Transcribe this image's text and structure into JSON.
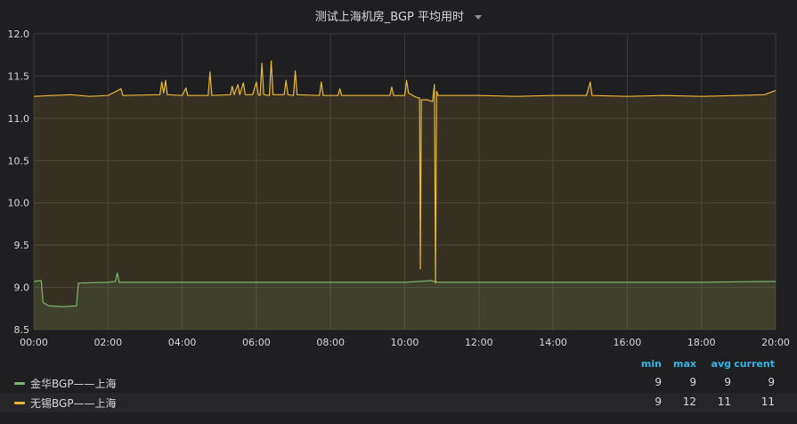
{
  "panel": {
    "title": "测试上海机房_BGP 平均用时"
  },
  "colors": {
    "jinhua": "#7eb26d",
    "wuxi": "#eab839",
    "grid": "#3a3a3c",
    "axis_text": "#d8d9da"
  },
  "chart_data": {
    "type": "line",
    "title": "测试上海机房_BGP 平均用时",
    "xlabel": "",
    "ylabel": "",
    "x_ticks": [
      "00:00",
      "02:00",
      "04:00",
      "06:00",
      "08:00",
      "10:00",
      "12:00",
      "14:00",
      "16:00",
      "18:00",
      "20:00"
    ],
    "xlim_hours": [
      0,
      20
    ],
    "ylim": [
      8.5,
      12.0
    ],
    "y_ticks": [
      "8.5",
      "9.0",
      "9.5",
      "10.0",
      "10.5",
      "11.0",
      "11.5",
      "12.0"
    ],
    "grid": true,
    "legend": "bottom",
    "series": [
      {
        "name": "金华BGP——上海",
        "color": "#7eb26d",
        "fill": true,
        "points": [
          [
            0.0,
            9.07
          ],
          [
            0.2,
            9.08
          ],
          [
            0.25,
            8.82
          ],
          [
            0.4,
            8.78
          ],
          [
            0.8,
            8.77
          ],
          [
            1.15,
            8.78
          ],
          [
            1.2,
            9.05
          ],
          [
            2.0,
            9.06
          ],
          [
            2.2,
            9.07
          ],
          [
            2.25,
            9.17
          ],
          [
            2.3,
            9.06
          ],
          [
            4.0,
            9.06
          ],
          [
            6.0,
            9.06
          ],
          [
            8.0,
            9.06
          ],
          [
            10.0,
            9.06
          ],
          [
            10.4,
            9.07
          ],
          [
            10.7,
            9.08
          ],
          [
            10.9,
            9.06
          ],
          [
            12.0,
            9.06
          ],
          [
            14.0,
            9.06
          ],
          [
            16.0,
            9.06
          ],
          [
            18.0,
            9.06
          ],
          [
            20.0,
            9.07
          ]
        ]
      },
      {
        "name": "无锡BGP——上海",
        "color": "#eab839",
        "fill": true,
        "points": [
          [
            0.0,
            11.26
          ],
          [
            0.5,
            11.27
          ],
          [
            1.0,
            11.28
          ],
          [
            1.5,
            11.26
          ],
          [
            2.0,
            11.27
          ],
          [
            2.35,
            11.35
          ],
          [
            2.4,
            11.27
          ],
          [
            3.4,
            11.28
          ],
          [
            3.45,
            11.43
          ],
          [
            3.5,
            11.3
          ],
          [
            3.55,
            11.45
          ],
          [
            3.6,
            11.28
          ],
          [
            4.0,
            11.27
          ],
          [
            4.1,
            11.36
          ],
          [
            4.15,
            11.27
          ],
          [
            4.7,
            11.27
          ],
          [
            4.75,
            11.55
          ],
          [
            4.8,
            11.27
          ],
          [
            5.3,
            11.28
          ],
          [
            5.35,
            11.38
          ],
          [
            5.4,
            11.28
          ],
          [
            5.5,
            11.4
          ],
          [
            5.55,
            11.28
          ],
          [
            5.65,
            11.42
          ],
          [
            5.7,
            11.28
          ],
          [
            5.9,
            11.28
          ],
          [
            6.0,
            11.43
          ],
          [
            6.05,
            11.28
          ],
          [
            6.1,
            11.27
          ],
          [
            6.15,
            11.65
          ],
          [
            6.2,
            11.28
          ],
          [
            6.35,
            11.27
          ],
          [
            6.4,
            11.68
          ],
          [
            6.45,
            11.28
          ],
          [
            6.75,
            11.28
          ],
          [
            6.8,
            11.45
          ],
          [
            6.85,
            11.28
          ],
          [
            7.0,
            11.27
          ],
          [
            7.05,
            11.56
          ],
          [
            7.1,
            11.28
          ],
          [
            7.7,
            11.27
          ],
          [
            7.75,
            11.43
          ],
          [
            7.8,
            11.27
          ],
          [
            8.2,
            11.27
          ],
          [
            8.25,
            11.35
          ],
          [
            8.3,
            11.27
          ],
          [
            9.6,
            11.27
          ],
          [
            9.65,
            11.37
          ],
          [
            9.7,
            11.27
          ],
          [
            10.0,
            11.27
          ],
          [
            10.05,
            11.45
          ],
          [
            10.1,
            11.3
          ],
          [
            10.3,
            11.25
          ],
          [
            10.4,
            11.24
          ],
          [
            10.42,
            9.22
          ],
          [
            10.45,
            11.22
          ],
          [
            10.6,
            11.22
          ],
          [
            10.75,
            11.2
          ],
          [
            10.8,
            11.4
          ],
          [
            10.83,
            9.05
          ],
          [
            10.86,
            11.32
          ],
          [
            10.9,
            11.27
          ],
          [
            11.2,
            11.27
          ],
          [
            12.0,
            11.27
          ],
          [
            13.0,
            11.26
          ],
          [
            14.0,
            11.27
          ],
          [
            14.9,
            11.27
          ],
          [
            15.0,
            11.43
          ],
          [
            15.05,
            11.27
          ],
          [
            16.0,
            11.26
          ],
          [
            17.0,
            11.27
          ],
          [
            18.0,
            11.26
          ],
          [
            19.0,
            11.27
          ],
          [
            19.7,
            11.28
          ],
          [
            20.0,
            11.33
          ]
        ]
      }
    ]
  },
  "legend": {
    "headers": {
      "min": "min",
      "max": "max",
      "avg": "avg",
      "current": "current"
    },
    "rows": [
      {
        "name": "金华BGP——上海",
        "color": "#7eb26d",
        "min": "9",
        "max": "9",
        "avg": "9",
        "current": "9"
      },
      {
        "name": "无锡BGP——上海",
        "color": "#eab839",
        "min": "9",
        "max": "12",
        "avg": "11",
        "current": "11"
      }
    ]
  }
}
